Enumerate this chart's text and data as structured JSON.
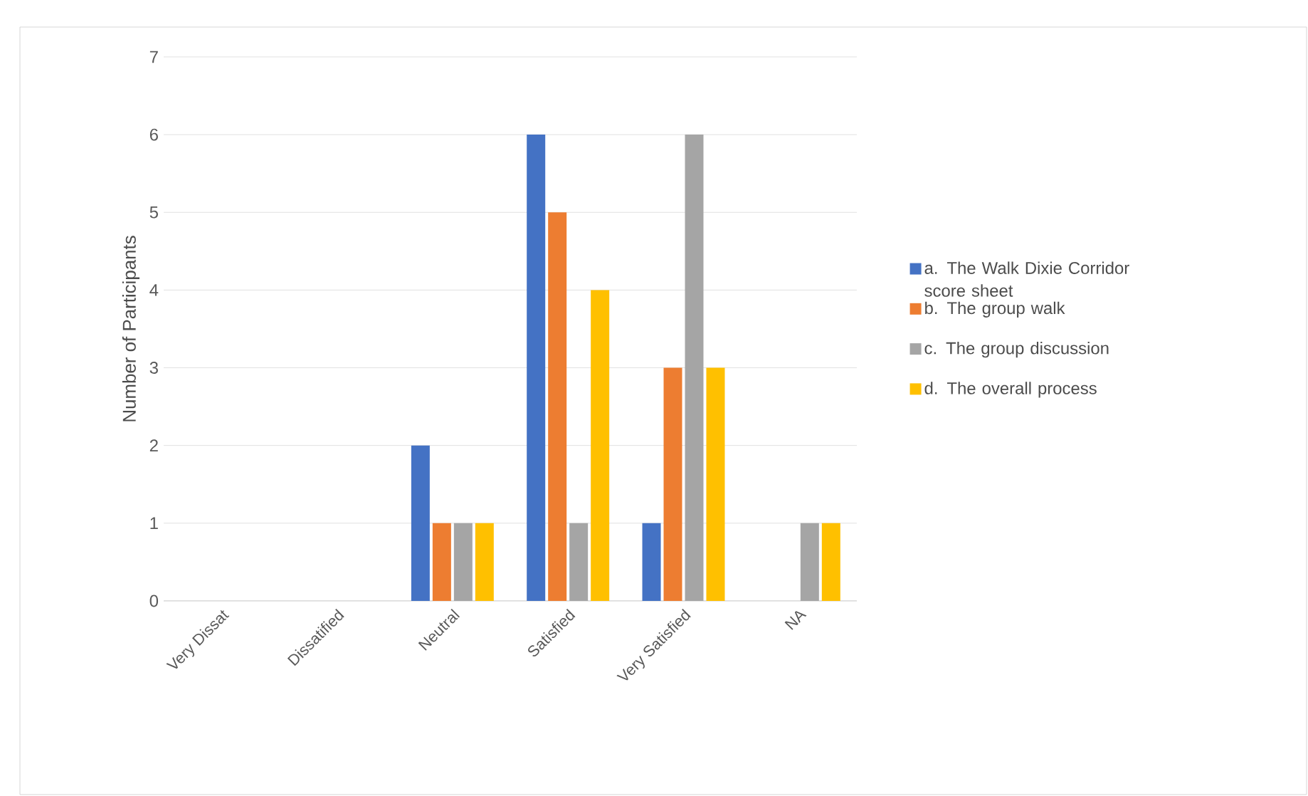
{
  "chart_data": {
    "type": "bar",
    "ylabel": "Number of Participants",
    "categories": [
      "Very Dissat",
      "Dissatified",
      "Neutral",
      "Satisfied",
      "Very Satisfied",
      "NA"
    ],
    "series": [
      {
        "name": "a. The Walk Dixie Corridor score sheet",
        "color": "#4472c4",
        "values": [
          0,
          0,
          2,
          6,
          1,
          0
        ]
      },
      {
        "name": "b. The group walk",
        "color": "#ed7d31",
        "values": [
          0,
          0,
          1,
          5,
          3,
          0
        ]
      },
      {
        "name": "c. The group discussion",
        "color": "#a5a5a5",
        "values": [
          0,
          0,
          1,
          1,
          6,
          1
        ]
      },
      {
        "name": "d. The overall process",
        "color": "#ffc000",
        "values": [
          0,
          0,
          1,
          4,
          3,
          1
        ]
      }
    ],
    "ylim": [
      0,
      7
    ],
    "yticks": [
      0,
      1,
      2,
      3,
      4,
      5,
      6,
      7
    ],
    "grid": "y",
    "legend": "right"
  }
}
